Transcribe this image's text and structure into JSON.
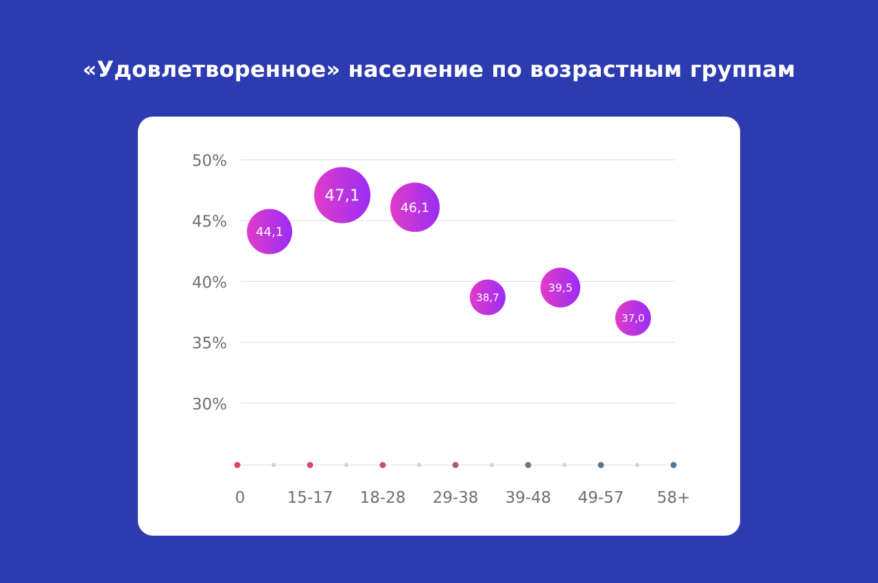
{
  "title": "«Удовлетворенное» население по возрастным группам",
  "chart_data": {
    "type": "scatter",
    "title": "«Удовлетворенное» население по возрастным группам",
    "xlabel": "",
    "ylabel": "",
    "x_tick_labels": [
      "0",
      "15-17",
      "18-28",
      "29-38",
      "39-48",
      "49-57",
      "58+"
    ],
    "y_tick_labels": [
      "50%",
      "45%",
      "40%",
      "35%",
      "30%"
    ],
    "y_ticks": [
      50,
      45,
      40,
      35,
      30
    ],
    "ylim": [
      25,
      50
    ],
    "grid": true,
    "legend": "none",
    "points": [
      {
        "x": 0.5,
        "value": 44.1,
        "label": "44,1",
        "size": "medium"
      },
      {
        "x": 1.5,
        "value": 47.1,
        "label": "47,1",
        "size": "large"
      },
      {
        "x": 2.5,
        "value": 46.1,
        "label": "46,1",
        "size": "medium-large"
      },
      {
        "x": 3.5,
        "value": 38.7,
        "label": "38,7",
        "size": "small"
      },
      {
        "x": 4.5,
        "value": 39.5,
        "label": "39,5",
        "size": "small-medium"
      },
      {
        "x": 5.5,
        "value": 37.0,
        "label": "37,0",
        "size": "small"
      }
    ],
    "axis_marker_colors": [
      "#e0405e",
      "#d94664",
      "#bf5272",
      "#a65a78",
      "#8a6880",
      "#5b7590",
      "#4e7aa0"
    ],
    "bubble_gradient": [
      "#e03cc8",
      "#9b2df5"
    ]
  }
}
